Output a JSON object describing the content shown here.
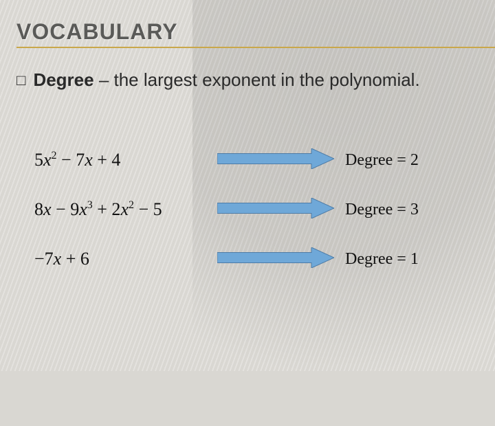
{
  "title": "VOCABULARY",
  "definition": {
    "bullet": "□",
    "term": "Degree",
    "rest": " – the largest exponent in the polynomial."
  },
  "arrow": {
    "fill": "#6fa8d8",
    "stroke": "#4d7ba6",
    "width": 170,
    "height": 30
  },
  "rows": [
    {
      "expression_html": "5<i>x</i><sup>2</sup> − 7<i>x</i> + 4",
      "degree_label": "Degree = 2",
      "arrow_width": 170
    },
    {
      "expression_html": "8<i>x</i> − 9<i>x</i><sup>3</sup> + 2<i>x</i><sup>2</sup> − 5",
      "degree_label": "Degree = 3",
      "arrow_width": 170
    },
    {
      "expression_html": "−7<i>x</i> + 6",
      "degree_label": "Degree = 1",
      "arrow_width": 170
    }
  ],
  "colors": {
    "background": "#d9d7d2",
    "title_text": "#5a5a58",
    "underline": "#c9a74a",
    "body_text": "#2a2a2a"
  }
}
